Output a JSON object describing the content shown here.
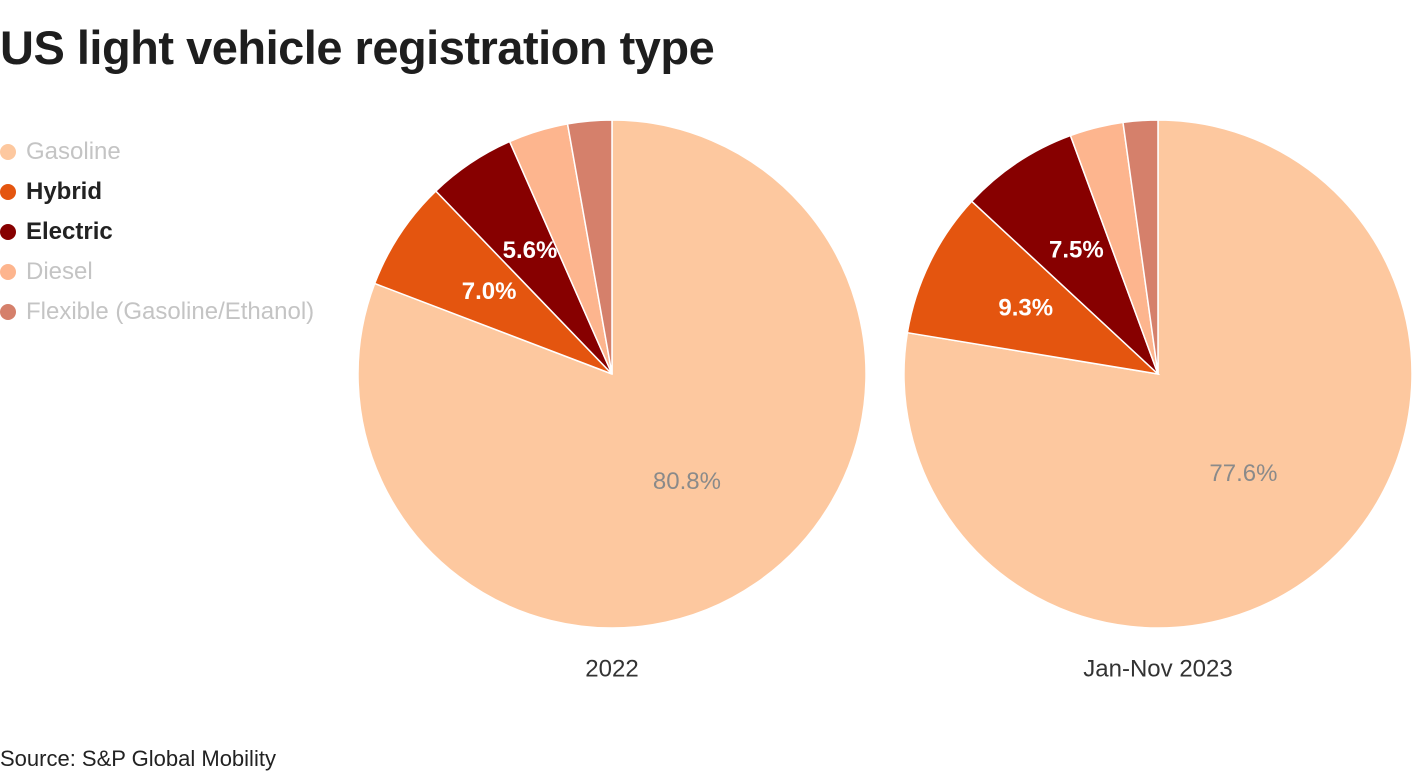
{
  "title": "US light vehicle registration type",
  "source": "Source: S&P Global Mobility",
  "legend": {
    "items": [
      {
        "label": "Gasoline",
        "color": "#fdc89f",
        "emphasis": "muted"
      },
      {
        "label": "Hybrid",
        "color": "#e4550f",
        "emphasis": "bold"
      },
      {
        "label": "Electric",
        "color": "#870000",
        "emphasis": "bold"
      },
      {
        "label": "Diesel",
        "color": "#fdb58e",
        "emphasis": "muted"
      },
      {
        "label": "Flexible (Gasoline/Ethanol)",
        "color": "#d5806b",
        "emphasis": "muted"
      }
    ]
  },
  "chart_data": [
    {
      "type": "pie",
      "title": "2022",
      "categories": [
        "Gasoline",
        "Hybrid",
        "Electric",
        "Diesel",
        "Flexible (Gasoline/Ethanol)"
      ],
      "values": [
        80.8,
        7.0,
        5.6,
        3.8,
        2.8
      ],
      "data_labels": [
        "80.8%",
        "7.0%",
        "5.6%",
        "",
        ""
      ]
    },
    {
      "type": "pie",
      "title": "Jan-Nov 2023",
      "categories": [
        "Gasoline",
        "Hybrid",
        "Electric",
        "Diesel",
        "Flexible (Gasoline/Ethanol)"
      ],
      "values": [
        77.6,
        9.3,
        7.5,
        3.4,
        2.2
      ],
      "data_labels": [
        "77.6%",
        "9.3%",
        "7.5%",
        "",
        ""
      ]
    }
  ]
}
